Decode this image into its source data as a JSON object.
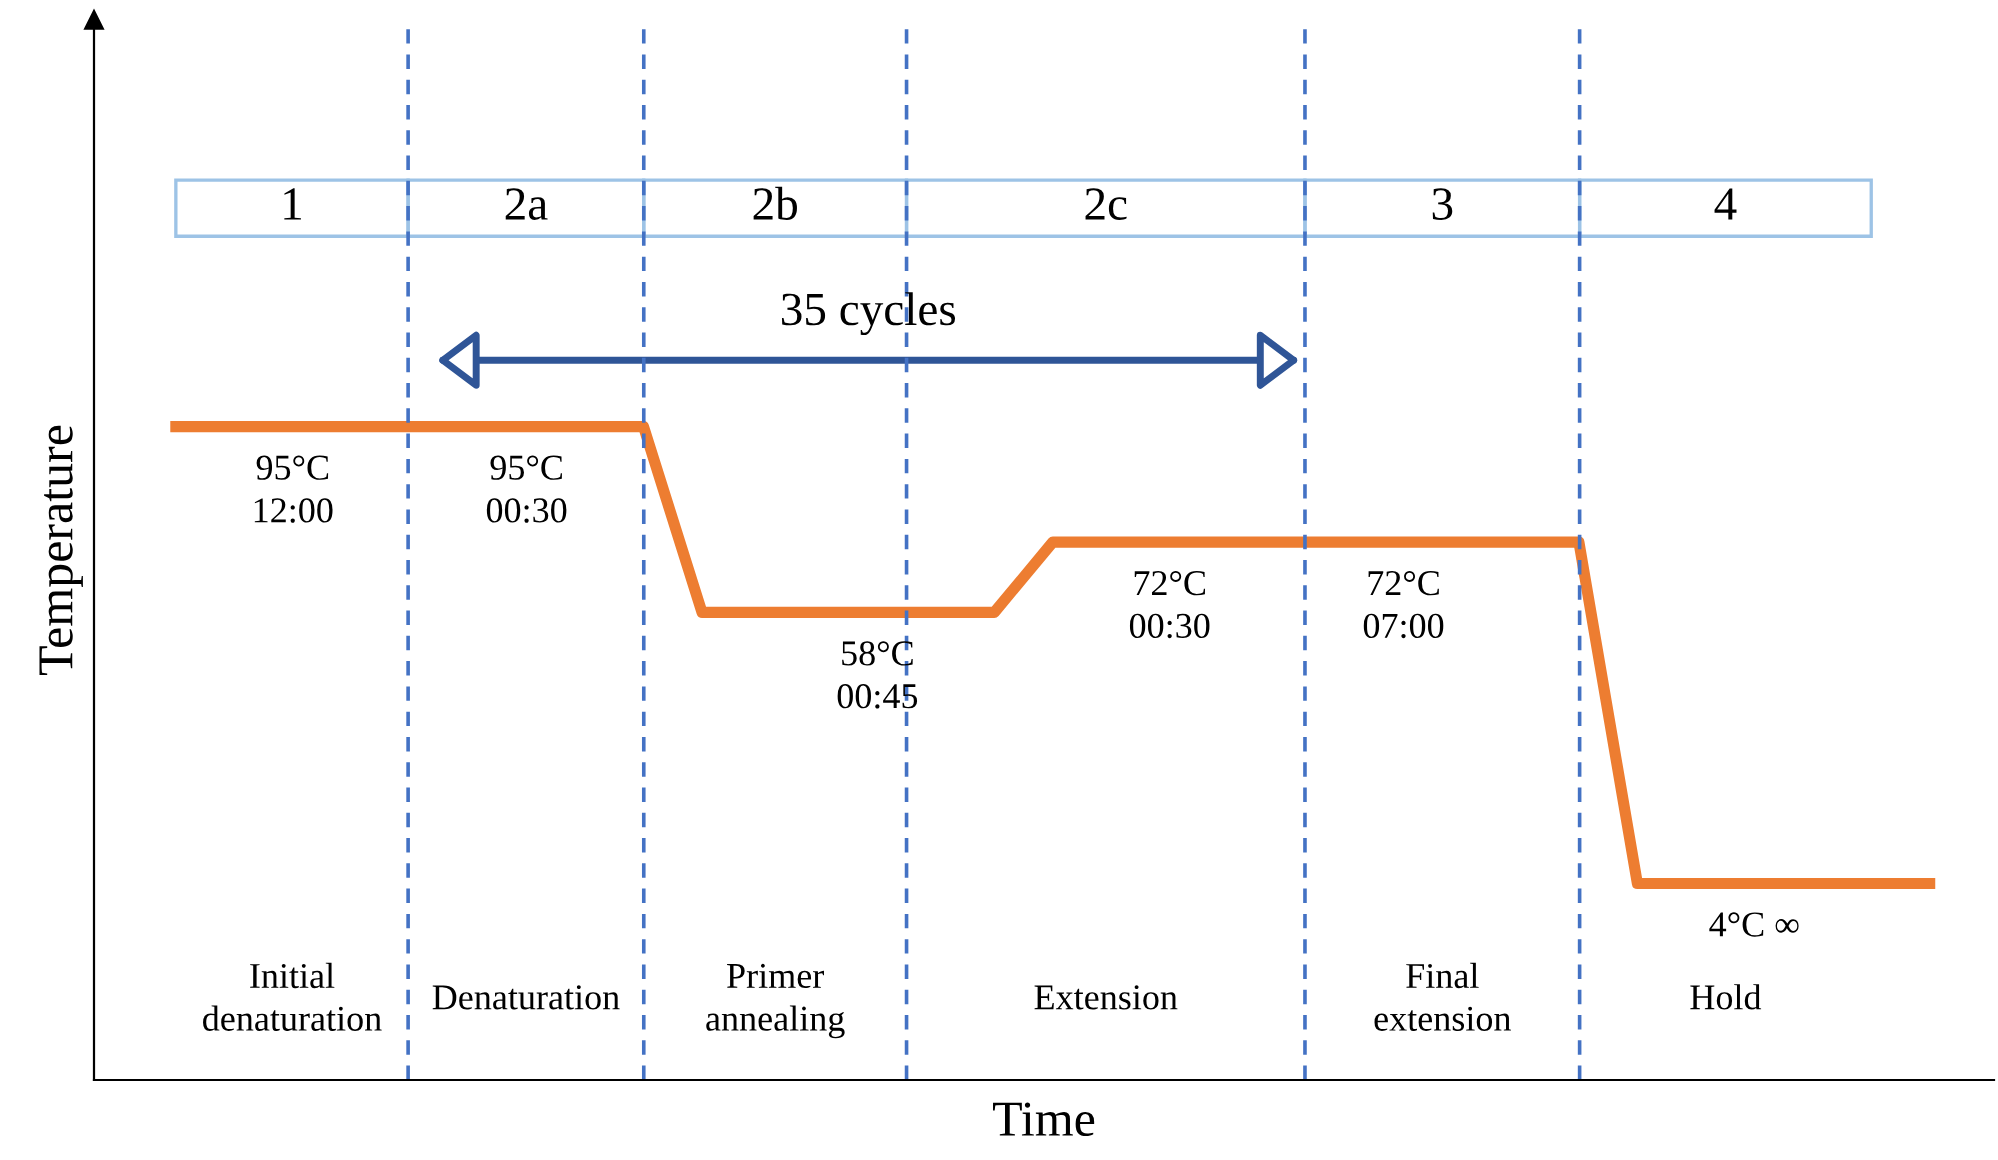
{
  "chart_data": {
    "type": "line",
    "xlabel": "Time",
    "ylabel": "Temperature",
    "marker": "none",
    "grid": "x",
    "line_style": "solid",
    "categories": [
      null,
      null,
      null,
      null,
      null,
      null,
      null,
      null,
      null,
      null,
      null,
      null,
      null,
      null,
      null,
      null,
      null,
      null,
      null,
      null,
      null,
      null,
      null,
      null,
      null,
      null,
      null,
      null,
      null,
      null,
      null
    ],
    "series": [
      {
        "color": "#ed7d31",
        "values": [
          95,
          95,
          95,
          95,
          95,
          95,
          95,
          95,
          95,
          58,
          58,
          58,
          58,
          58,
          58,
          72,
          72,
          72,
          72,
          72,
          72,
          72,
          72,
          72,
          72,
          4,
          4,
          4,
          4,
          4,
          4
        ],
        "value_labels": [
          null,
          null,
          "95°C\n12:00",
          null,
          null,
          null,
          "95°C\n00:30",
          null,
          null,
          null,
          null,
          null,
          "58°C\n00:45",
          null,
          null,
          null,
          null,
          "72°C\n00:30",
          null,
          null,
          null,
          "72°C\n07:00",
          null,
          null,
          null,
          null,
          null,
          "4°C ∞",
          null,
          null,
          null
        ]
      }
    ],
    "annotations": [
      "1",
      "2a",
      "2b",
      "2c",
      "3",
      "4",
      "35 cycles",
      "Initial\ndenaturation",
      "Denaturation",
      "Primer\nannealing",
      "Extension",
      "Final\nextension",
      "Hold"
    ]
  }
}
